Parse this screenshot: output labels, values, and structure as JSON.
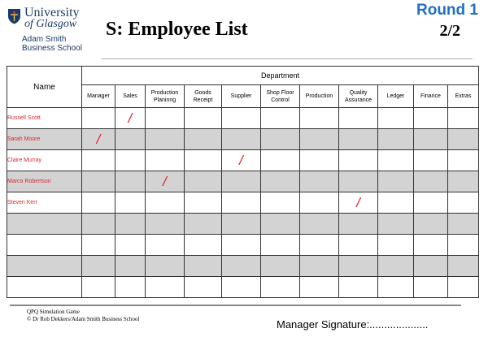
{
  "header": {
    "logo_line1": "University",
    "logo_line2": "of Glasgow",
    "school_line1": "Adam Smith",
    "school_line2": "Business School",
    "title": "S: Employee List",
    "round": "Round 1",
    "page": "2/2"
  },
  "table": {
    "name_header": "Name",
    "department_header": "Department",
    "departments": [
      [
        "Manager"
      ],
      [
        "Sales"
      ],
      [
        "Production",
        "Planinng"
      ],
      [
        "Goods",
        "Receipt"
      ],
      [
        "Supplier"
      ],
      [
        "Shop Floor",
        "Control"
      ],
      [
        "Production"
      ],
      [
        "Quality",
        "Assurance"
      ],
      [
        "Ledger"
      ],
      [
        "Finance"
      ],
      [
        "Extras"
      ]
    ],
    "rows": [
      {
        "name": "Russell Scott",
        "mark": 1,
        "shaded": false
      },
      {
        "name": "Sarah Moore",
        "mark": 0,
        "shaded": true
      },
      {
        "name": "Claire Murray",
        "mark": 4,
        "shaded": false
      },
      {
        "name": "Marco Robertson",
        "mark": 2,
        "shaded": true
      },
      {
        "name": "Steven Kerr",
        "mark": 7,
        "shaded": false
      },
      {
        "name": "",
        "mark": -1,
        "shaded": true
      },
      {
        "name": "",
        "mark": -1,
        "shaded": false
      },
      {
        "name": "",
        "mark": -1,
        "shaded": true
      },
      {
        "name": "",
        "mark": -1,
        "shaded": false
      }
    ],
    "mark_symbol": "/"
  },
  "footer": {
    "line1": "QPQ Simulation Game",
    "line2": "© Dr Rob Dekkers/Adam Smith Business School",
    "signature": "Manager Signature:...................."
  }
}
